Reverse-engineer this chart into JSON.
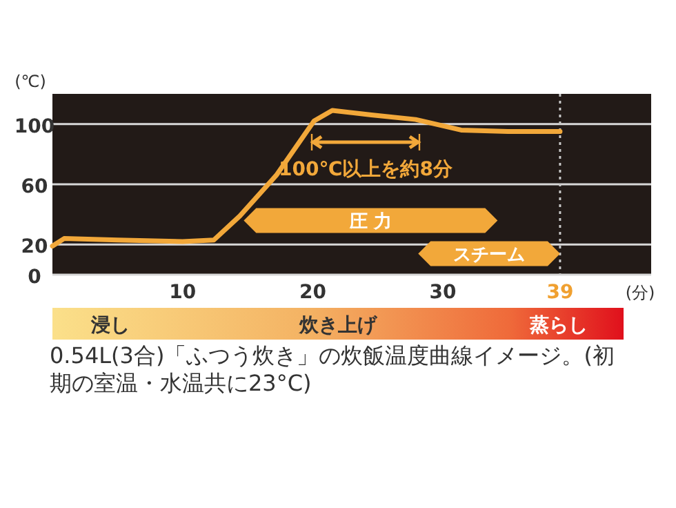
{
  "chart_data": {
    "type": "line",
    "ylabel": "(℃)",
    "xlabel": "(分)",
    "x": [
      0,
      0.9,
      5,
      10,
      12.4,
      14.4,
      17.2,
      20.1,
      21.5,
      24.5,
      27.9,
      31.4,
      35,
      39
    ],
    "series": [
      {
        "color": "#f2a83a",
        "values": [
          19,
          24,
          23,
          22,
          23,
          39,
          66,
          102,
          109,
          106,
          103,
          96,
          95,
          95
        ]
      }
    ],
    "xlim": [
      0,
      46
    ],
    "ylim": [
      0,
      120
    ],
    "xticks": [
      10,
      20,
      30,
      {
        "value": 39,
        "label": "39"
      }
    ],
    "yticks": [
      0,
      20,
      60,
      100
    ],
    "grid": "y",
    "marker": "none",
    "line_style": "solid",
    "ref_lines": [
      {
        "axis": "x",
        "value": 39,
        "color": "#c8c8c8",
        "line_style": "dotted"
      }
    ],
    "bands": [
      {
        "axis": "x",
        "from": 14.7,
        "to": 34.2,
        "label": "圧 力",
        "color": "#f2a83a"
      },
      {
        "axis": "x",
        "from": 28.1,
        "to": 39,
        "label": "スチーム",
        "color": "#f2a83a"
      }
    ],
    "annotations": [
      "100℃以上を約8分",
      "浸し",
      "炊き上げ",
      "蒸らし",
      "0.54L(3合)「ふつう炊き」の炊飯温度曲線イメージ。(初期の室温・水温共に23°C)"
    ]
  }
}
